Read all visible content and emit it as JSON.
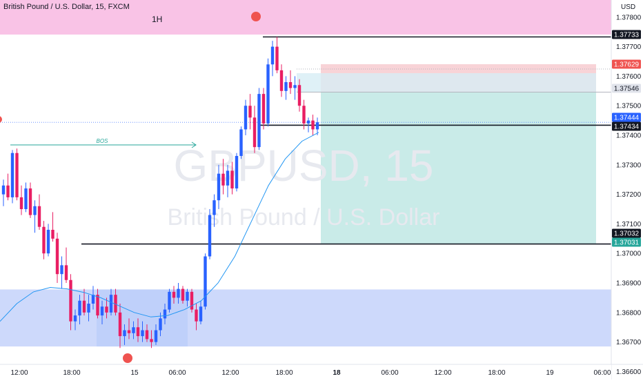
{
  "header": {
    "symbol_title": "British Pound / U.S. Dollar, 15, FXCM",
    "timeframe_badge": "1H",
    "currency": "USD"
  },
  "watermark": {
    "symbol": "GBPUSD, 15",
    "description": "British Pound / U.S. Dollar"
  },
  "annotations": {
    "bos_label": "BOS"
  },
  "colors": {
    "up_candle": "#2962ff",
    "down_candle": "#e91e63",
    "ma_line": "#2196f3",
    "supply_zone": "#f9c3e6",
    "demand_zone": "#cdd9fb",
    "profit_zone": "#c9ebe8",
    "loss_zone": "#f6c8cd",
    "marker": "#ef5350",
    "bos_arrow": "#26a69a"
  },
  "chart_data": {
    "type": "candlestick",
    "y_axis": {
      "ticks": [
        "1.37800",
        "1.37700",
        "1.37600",
        "1.37500",
        "1.37400",
        "1.37300",
        "1.37200",
        "1.37100",
        "1.37000",
        "1.36900",
        "1.36800",
        "1.36700",
        "1.36600"
      ],
      "ylim": [
        1.36573,
        1.37858
      ]
    },
    "x_axis": {
      "ticks": [
        "12:00",
        "18:00",
        "15",
        "06:00",
        "12:00",
        "18:00",
        "18",
        "06:00",
        "12:00",
        "18:00",
        "19",
        "06:00"
      ],
      "bold_ticks": [
        "18"
      ]
    },
    "price_labels": [
      {
        "value": "1.37733",
        "style": "dark"
      },
      {
        "value": "1.37629",
        "style": "red"
      },
      {
        "value": "1.37546",
        "style": "grey"
      },
      {
        "value": "1.37444",
        "style": "blue"
      },
      {
        "value": "1.37434",
        "style": "dark"
      },
      {
        "value": "1.37032",
        "style": "dark"
      },
      {
        "value": "1.37031",
        "style": "teal"
      }
    ],
    "levels": [
      {
        "price": 1.37733,
        "from": "16 Jun 14:30"
      },
      {
        "price": 1.37434,
        "from": "16 Jun 14:30"
      },
      {
        "price": 1.37032,
        "from": "15 Jun 06:30"
      }
    ],
    "zones": [
      {
        "name": "supply",
        "price_from": 1.37741,
        "price_to": 1.37858
      },
      {
        "name": "demand",
        "price_from": 1.36685,
        "price_to": 1.36878
      }
    ],
    "position": {
      "side": "long",
      "entry": 1.37546,
      "stop": 1.37629,
      "target": 1.37032
    },
    "ma_path": [
      [
        1.3677,
        0
      ],
      [
        1.3683,
        1
      ],
      [
        1.3687,
        2
      ],
      [
        1.36885,
        3
      ],
      [
        1.3688,
        4
      ],
      [
        1.36868,
        5
      ],
      [
        1.3685,
        6
      ],
      [
        1.36825,
        7
      ],
      [
        1.368,
        8
      ],
      [
        1.36785,
        9
      ],
      [
        1.3679,
        10
      ],
      [
        1.3681,
        11
      ],
      [
        1.3684,
        12
      ],
      [
        1.369,
        13
      ],
      [
        1.3699,
        14
      ],
      [
        1.3711,
        15
      ],
      [
        1.3723,
        16
      ],
      [
        1.3732,
        17
      ],
      [
        1.3738,
        18
      ],
      [
        1.3741,
        19
      ]
    ],
    "candles": [
      [
        1.372,
        1.3725,
        1.3716,
        1.3723
      ],
      [
        1.3723,
        1.3727,
        1.3718,
        1.3719
      ],
      [
        1.3719,
        1.3735,
        1.3717,
        1.3734
      ],
      [
        1.3734,
        1.37355,
        1.3718,
        1.3719
      ],
      [
        1.3719,
        1.3723,
        1.3713,
        1.3715
      ],
      [
        1.3715,
        1.3724,
        1.3714,
        1.3722
      ],
      [
        1.3722,
        1.3724,
        1.3712,
        1.3713
      ],
      [
        1.3713,
        1.3718,
        1.3707,
        1.3716
      ],
      [
        1.3716,
        1.372,
        1.3708,
        1.3709
      ],
      [
        1.3709,
        1.3711,
        1.3698,
        1.37
      ],
      [
        1.37,
        1.371,
        1.3699,
        1.3708
      ],
      [
        1.3708,
        1.3714,
        1.3704,
        1.3705
      ],
      [
        1.3705,
        1.3707,
        1.369,
        1.3693
      ],
      [
        1.3693,
        1.3699,
        1.3688,
        1.3696
      ],
      [
        1.3696,
        1.3702,
        1.369,
        1.3691
      ],
      [
        1.3691,
        1.3693,
        1.3674,
        1.3677
      ],
      [
        1.3677,
        1.3681,
        1.3674,
        1.3679
      ],
      [
        1.3679,
        1.3686,
        1.3676,
        1.3684
      ],
      [
        1.3684,
        1.3688,
        1.3679,
        1.368
      ],
      [
        1.368,
        1.3686,
        1.3677,
        1.3683
      ],
      [
        1.3683,
        1.3689,
        1.3681,
        1.3686
      ],
      [
        1.3686,
        1.3688,
        1.3678,
        1.3679
      ],
      [
        1.3679,
        1.3684,
        1.3676,
        1.3682
      ],
      [
        1.3682,
        1.3685,
        1.3678,
        1.368
      ],
      [
        1.368,
        1.3688,
        1.3679,
        1.3686
      ],
      [
        1.3686,
        1.3688,
        1.3679,
        1.368
      ],
      [
        1.368,
        1.3683,
        1.3668,
        1.3672
      ],
      [
        1.3672,
        1.3676,
        1.3669,
        1.3674
      ],
      [
        1.3674,
        1.3678,
        1.3671,
        1.3673
      ],
      [
        1.3673,
        1.3677,
        1.3671,
        1.3675
      ],
      [
        1.3675,
        1.3678,
        1.367,
        1.3672
      ],
      [
        1.3672,
        1.3677,
        1.367,
        1.3674
      ],
      [
        1.3674,
        1.3676,
        1.367,
        1.3671
      ],
      [
        1.3671,
        1.3674,
        1.3668,
        1.367
      ],
      [
        1.367,
        1.3676,
        1.3669,
        1.3674
      ],
      [
        1.3674,
        1.368,
        1.3672,
        1.3678
      ],
      [
        1.3678,
        1.3683,
        1.3676,
        1.3681
      ],
      [
        1.3681,
        1.3688,
        1.368,
        1.3687
      ],
      [
        1.3687,
        1.3689,
        1.3683,
        1.3685
      ],
      [
        1.3685,
        1.369,
        1.3683,
        1.3688
      ],
      [
        1.3688,
        1.3689,
        1.3683,
        1.3684
      ],
      [
        1.3684,
        1.3688,
        1.3682,
        1.3687
      ],
      [
        1.3687,
        1.3688,
        1.368,
        1.3681
      ],
      [
        1.3681,
        1.3683,
        1.3674,
        1.3677
      ],
      [
        1.3677,
        1.3684,
        1.3676,
        1.3682
      ],
      [
        1.3682,
        1.37,
        1.3681,
        1.3699
      ],
      [
        1.3699,
        1.3715,
        1.3698,
        1.3713
      ],
      [
        1.3713,
        1.372,
        1.3709,
        1.3718
      ],
      [
        1.3718,
        1.373,
        1.3715,
        1.3727
      ],
      [
        1.3727,
        1.3732,
        1.372,
        1.3723
      ],
      [
        1.3723,
        1.373,
        1.3719,
        1.3728
      ],
      [
        1.3728,
        1.3731,
        1.372,
        1.3722
      ],
      [
        1.3722,
        1.3734,
        1.3721,
        1.3733
      ],
      [
        1.3733,
        1.3743,
        1.3732,
        1.3742
      ],
      [
        1.3742,
        1.3752,
        1.374,
        1.375
      ],
      [
        1.375,
        1.3754,
        1.3742,
        1.3746
      ],
      [
        1.3746,
        1.375,
        1.3734,
        1.3736
      ],
      [
        1.3736,
        1.3756,
        1.3735,
        1.3754
      ],
      [
        1.3754,
        1.3756,
        1.3742,
        1.3744
      ],
      [
        1.3744,
        1.3766,
        1.3743,
        1.3764
      ],
      [
        1.3764,
        1.3772,
        1.376,
        1.377
      ],
      [
        1.377,
        1.37733,
        1.3761,
        1.3762
      ],
      [
        1.3762,
        1.3764,
        1.3753,
        1.3755
      ],
      [
        1.3755,
        1.376,
        1.3752,
        1.3758
      ],
      [
        1.3758,
        1.3762,
        1.3754,
        1.3756
      ],
      [
        1.3756,
        1.376,
        1.3752,
        1.3757
      ],
      [
        1.3757,
        1.3759,
        1.3748,
        1.375
      ],
      [
        1.375,
        1.3752,
        1.3742,
        1.3744
      ],
      [
        1.3744,
        1.3746,
        1.3741,
        1.3745
      ],
      [
        1.3745,
        1.3747,
        1.374,
        1.3742
      ],
      [
        1.3742,
        1.3746,
        1.374,
        1.37444
      ]
    ]
  }
}
